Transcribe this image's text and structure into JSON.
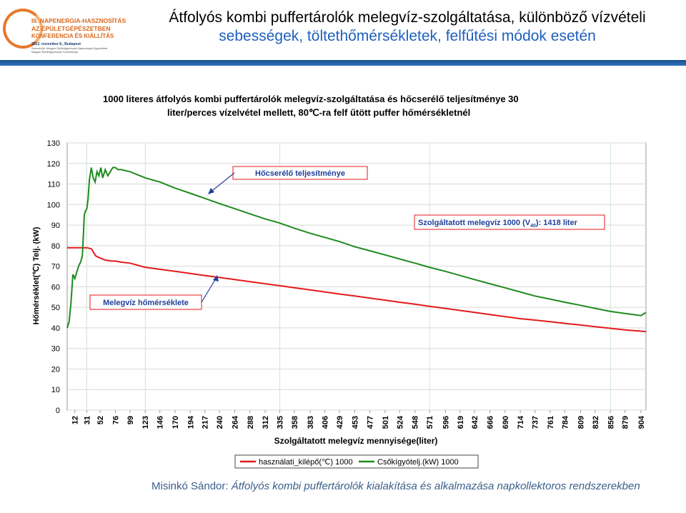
{
  "logo": {
    "line1": "III. NAPENERGIA-HASZNOSÍTÁS",
    "line2": "AZ ÉPÜLETGÉPÉSZETBEN",
    "line3": "KONFERENCIA ÉS KIÁLLÍTÁS",
    "line4": "2012. november 8., Budapest",
    "line5": "Szervezők: Magyar Épületgépészek Napenergia Egyesülete",
    "line6": "Magyar Épületgépészek Szövetsége"
  },
  "slide": {
    "title_line1": "Átfolyós kombi puffertárolók melegvíz-szolgáltatása, különböző vízvételi",
    "title_line2": "sebességek, töltethőmérsékletek, felfűtési módok esetén",
    "footer_author": "Misinkó Sándor: ",
    "footer_work": "Átfolyós kombi puffertárolók kialakítása és alkalmazása napkollektoros rendszerekben",
    "accent_color": "#1f5fbf"
  },
  "chart_data": {
    "type": "line",
    "title_line1": "1000 literes átfolyós kombi puffertárolók melegvíz-szolgáltatása és hőcserélő teljesítménye 30",
    "title_line2": "liter/perces vízelvétel mellett, 80℃-ra felf űtött puffer hőmérsékletnél",
    "xlabel": "Szolgáltatott melegvíz mennyisége(liter)",
    "ylabel": "Hőmérséklet(℃) Telj. (kW)",
    "ylim": [
      0,
      130
    ],
    "yticks": [
      0,
      10,
      20,
      30,
      40,
      50,
      60,
      70,
      80,
      90,
      100,
      110,
      120,
      130
    ],
    "xlim": [
      0,
      912
    ],
    "xticks": [
      "12",
      "31",
      "52",
      "76",
      "99",
      "123",
      "146",
      "170",
      "194",
      "217",
      "240",
      "264",
      "288",
      "312",
      "335",
      "358",
      "383",
      "406",
      "429",
      "453",
      "477",
      "501",
      "524",
      "548",
      "571",
      "596",
      "619",
      "642",
      "666",
      "690",
      "714",
      "737",
      "761",
      "784",
      "809",
      "832",
      "856",
      "879",
      "904"
    ],
    "xtick_values": [
      12,
      31,
      52,
      76,
      99,
      123,
      146,
      170,
      194,
      217,
      240,
      264,
      288,
      312,
      335,
      358,
      383,
      406,
      429,
      453,
      477,
      501,
      524,
      548,
      571,
      596,
      619,
      642,
      666,
      690,
      714,
      737,
      761,
      784,
      809,
      832,
      856,
      879,
      904
    ],
    "grid_x": [
      31,
      123,
      335,
      571,
      856
    ],
    "series": [
      {
        "name": "használati_kilépő(℃) 1000",
        "color": "#e31a1c",
        "x": [
          0,
          12,
          20,
          31,
          38,
          45,
          52,
          60,
          70,
          76,
          85,
          99,
          123,
          146,
          170,
          194,
          217,
          240,
          264,
          288,
          312,
          335,
          358,
          383,
          406,
          429,
          453,
          477,
          501,
          524,
          548,
          571,
          596,
          619,
          642,
          666,
          690,
          714,
          737,
          761,
          784,
          809,
          832,
          856,
          879,
          904,
          912
        ],
        "y": [
          79,
          79,
          79,
          79,
          78.5,
          75,
          74,
          73,
          72.5,
          72.5,
          72,
          71.5,
          69.5,
          68.5,
          67.5,
          66.5,
          65.5,
          64.5,
          63.5,
          62.5,
          61.5,
          60.5,
          59.5,
          58.5,
          57.5,
          56.5,
          55.5,
          54.5,
          53.5,
          52.5,
          51.5,
          50.5,
          49.5,
          48.5,
          47.5,
          46.5,
          45.5,
          44.5,
          43.8,
          43,
          42.2,
          41.4,
          40.6,
          39.8,
          39,
          38.4,
          38.2
        ]
      },
      {
        "name": "Csőkígyótelj.(kW) 1000",
        "color": "#1f8a1f",
        "x": [
          0,
          3,
          6,
          9,
          12,
          15,
          18,
          21,
          24,
          27,
          29,
          31,
          33,
          35,
          38,
          41,
          44,
          47,
          50,
          53,
          56,
          60,
          64,
          68,
          72,
          76,
          80,
          85,
          99,
          123,
          146,
          170,
          194,
          217,
          240,
          264,
          288,
          312,
          335,
          358,
          383,
          406,
          429,
          453,
          477,
          501,
          524,
          548,
          571,
          596,
          619,
          642,
          666,
          690,
          714,
          737,
          761,
          784,
          809,
          832,
          856,
          879,
          904,
          912
        ],
        "y": [
          40,
          43,
          52,
          66,
          64,
          67,
          70,
          72,
          75,
          95,
          97,
          98,
          103,
          112,
          118,
          113,
          111,
          116,
          114,
          118,
          113,
          117,
          114,
          116,
          118,
          118,
          117,
          117,
          116,
          113,
          111,
          108,
          105.5,
          103,
          100.5,
          98,
          95.5,
          93,
          91,
          88.5,
          86,
          84,
          82,
          79.5,
          77.5,
          75.5,
          73.5,
          71.5,
          69.5,
          67.5,
          65.5,
          63.5,
          61.5,
          59.5,
          57.5,
          55.5,
          54,
          52.5,
          51,
          49.5,
          48,
          47,
          46,
          47.5
        ]
      }
    ],
    "annotations": [
      {
        "text": "Hőcserélő teljesítménye",
        "color": "#1f3f9a",
        "border": "#e31a1c"
      },
      {
        "text": "Szolgáltatott melegvíz 1000 (V",
        "sub": "40",
        "suffix": "): 1418 liter",
        "color": "#1f3f9a",
        "border": "#e31a1c"
      },
      {
        "text": "Melegvíz hőmérséklete",
        "color": "#1f3f9a",
        "border": "#e31a1c"
      }
    ],
    "legend_position": "bottom",
    "grid": true
  }
}
